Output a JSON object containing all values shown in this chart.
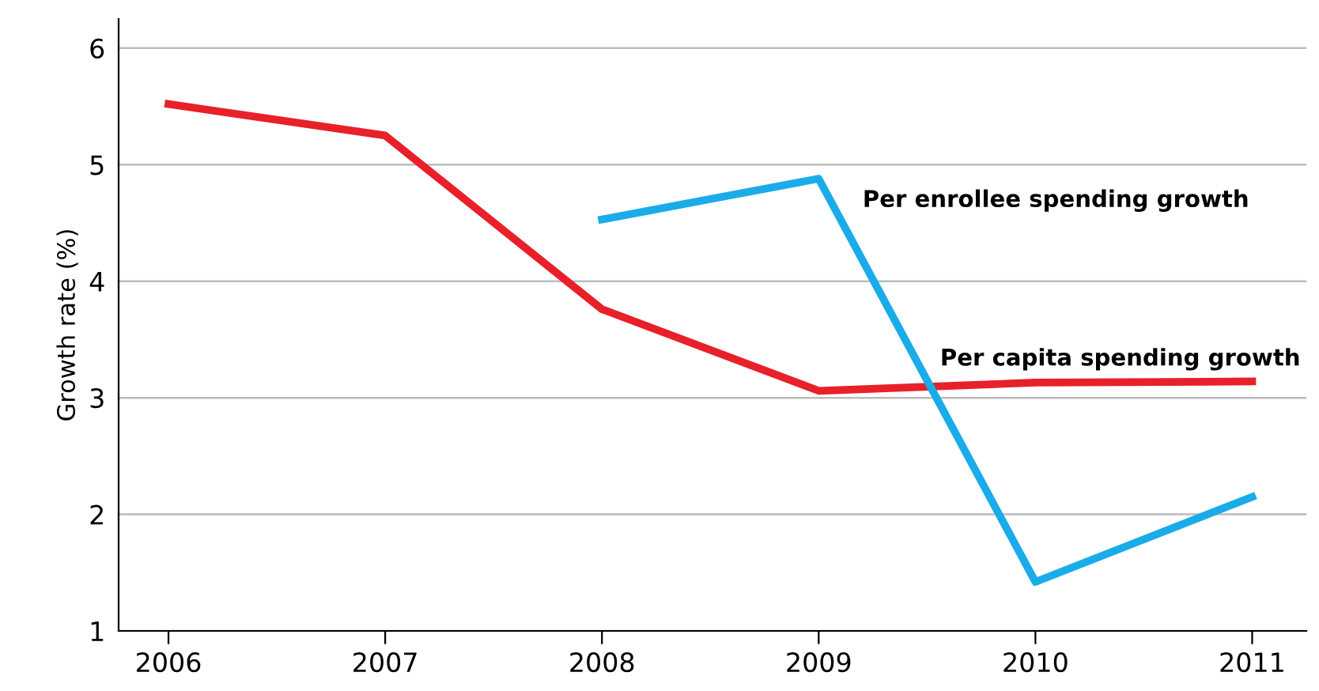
{
  "chart_data": {
    "type": "line",
    "ylabel": "Growth rate (%)",
    "x": [
      2006,
      2007,
      2008,
      2009,
      2010,
      2011
    ],
    "series": [
      {
        "name": "Per capita spending growth",
        "color": "#e8202a",
        "values": [
          5.52,
          5.25,
          3.76,
          3.06,
          3.13,
          3.14
        ]
      },
      {
        "name": "Per enrollee spending growth",
        "color": "#1aace8",
        "values": [
          null,
          null,
          4.53,
          4.88,
          1.42,
          2.15
        ]
      }
    ],
    "xlim": [
      2005.77,
      2011.25
    ],
    "xticks": [
      2006,
      2007,
      2008,
      2009,
      2010,
      2011
    ],
    "ylim": [
      1,
      6.25
    ],
    "yticks": [
      1,
      2,
      3,
      4,
      5,
      6
    ],
    "grid": "y",
    "legend": false,
    "marker": "none",
    "line_style": "solid"
  }
}
